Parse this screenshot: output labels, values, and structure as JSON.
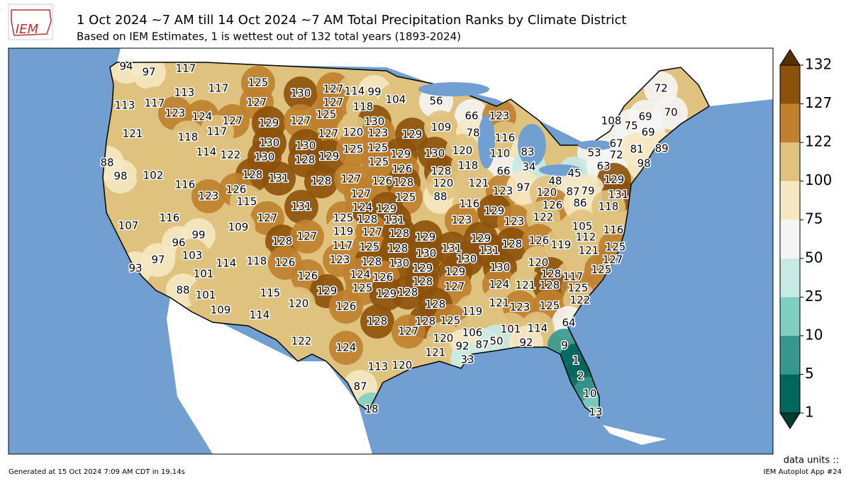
{
  "header": {
    "logo": "IEM",
    "title": "1 Oct 2024 ~7 AM till 14 Oct 2024 ~7 AM Total Precipitation Ranks by Climate District",
    "subtitle": "Based on IEM Estimates, 1 is wettest out of 132 total years (1893-2024)"
  },
  "map": {
    "district_ranks": [
      "94",
      "97",
      "117",
      "125",
      "130",
      "127",
      "114",
      "99",
      "104",
      "56",
      "113",
      "117",
      "113",
      "117",
      "127",
      "127",
      "118",
      "72",
      "123",
      "124",
      "127",
      "129",
      "127",
      "125",
      "130",
      "66",
      "123",
      "108",
      "69",
      "70",
      "121",
      "117",
      "118",
      "127",
      "120",
      "123",
      "129",
      "109",
      "78",
      "116",
      "75",
      "69",
      "88",
      "98",
      "102",
      "114",
      "122",
      "130",
      "130",
      "130",
      "128",
      "129",
      "125",
      "125",
      "129",
      "130",
      "120",
      "110",
      "83",
      "53",
      "67",
      "72",
      "81",
      "89",
      "128",
      "131",
      "128",
      "127",
      "125",
      "126",
      "126",
      "128",
      "128",
      "118",
      "66",
      "34",
      "45",
      "63",
      "98",
      "129",
      "116",
      "123",
      "126",
      "115",
      "127",
      "125",
      "88",
      "120",
      "121",
      "123",
      "97",
      "48",
      "120",
      "87",
      "79",
      "131",
      "116",
      "127",
      "131",
      "124",
      "129",
      "125",
      "128",
      "131",
      "116",
      "129",
      "126",
      "86",
      "118",
      "123",
      "123",
      "122",
      "107",
      "99",
      "109",
      "128",
      "127",
      "119",
      "127",
      "128",
      "129",
      "129",
      "128",
      "126",
      "119",
      "105",
      "112",
      "116",
      "96",
      "117",
      "125",
      "128",
      "130",
      "131",
      "131",
      "121",
      "125",
      "103",
      "97",
      "118",
      "126",
      "114",
      "123",
      "128",
      "130",
      "130",
      "120",
      "127",
      "93",
      "101",
      "126",
      "129",
      "129",
      "130",
      "128",
      "117",
      "125",
      "124",
      "126",
      "88",
      "101",
      "115",
      "129",
      "125",
      "129",
      "128",
      "128",
      "127",
      "124",
      "121",
      "128",
      "125",
      "109",
      "120",
      "114",
      "126",
      "128",
      "121",
      "123",
      "125",
      "122",
      "119",
      "128",
      "128",
      "125",
      "64",
      "127",
      "106",
      "101",
      "114",
      "122",
      "124",
      "120",
      "92",
      "87",
      "50",
      "92",
      "9",
      "121",
      "1",
      "33",
      "113",
      "120",
      "2",
      "87",
      "10",
      "18",
      "13"
    ],
    "colorbar": {
      "ticks": [
        "1",
        "5",
        "10",
        "25",
        "50",
        "75",
        "100",
        "122",
        "127",
        "132"
      ],
      "colors": [
        "#01665e",
        "#35978f",
        "#80cdc1",
        "#c7eae5",
        "#f5f5f5",
        "#f6e8c3",
        "#dfc27d",
        "#bf812d",
        "#8c510a"
      ],
      "under_color": "#003c30",
      "over_color": "#543005",
      "units": "data units ::"
    }
  },
  "footer": {
    "generated": "Generated at 15 Oct 2024 7:09 AM CDT in 19.14s",
    "app": "IEM Autoplot App #24"
  }
}
